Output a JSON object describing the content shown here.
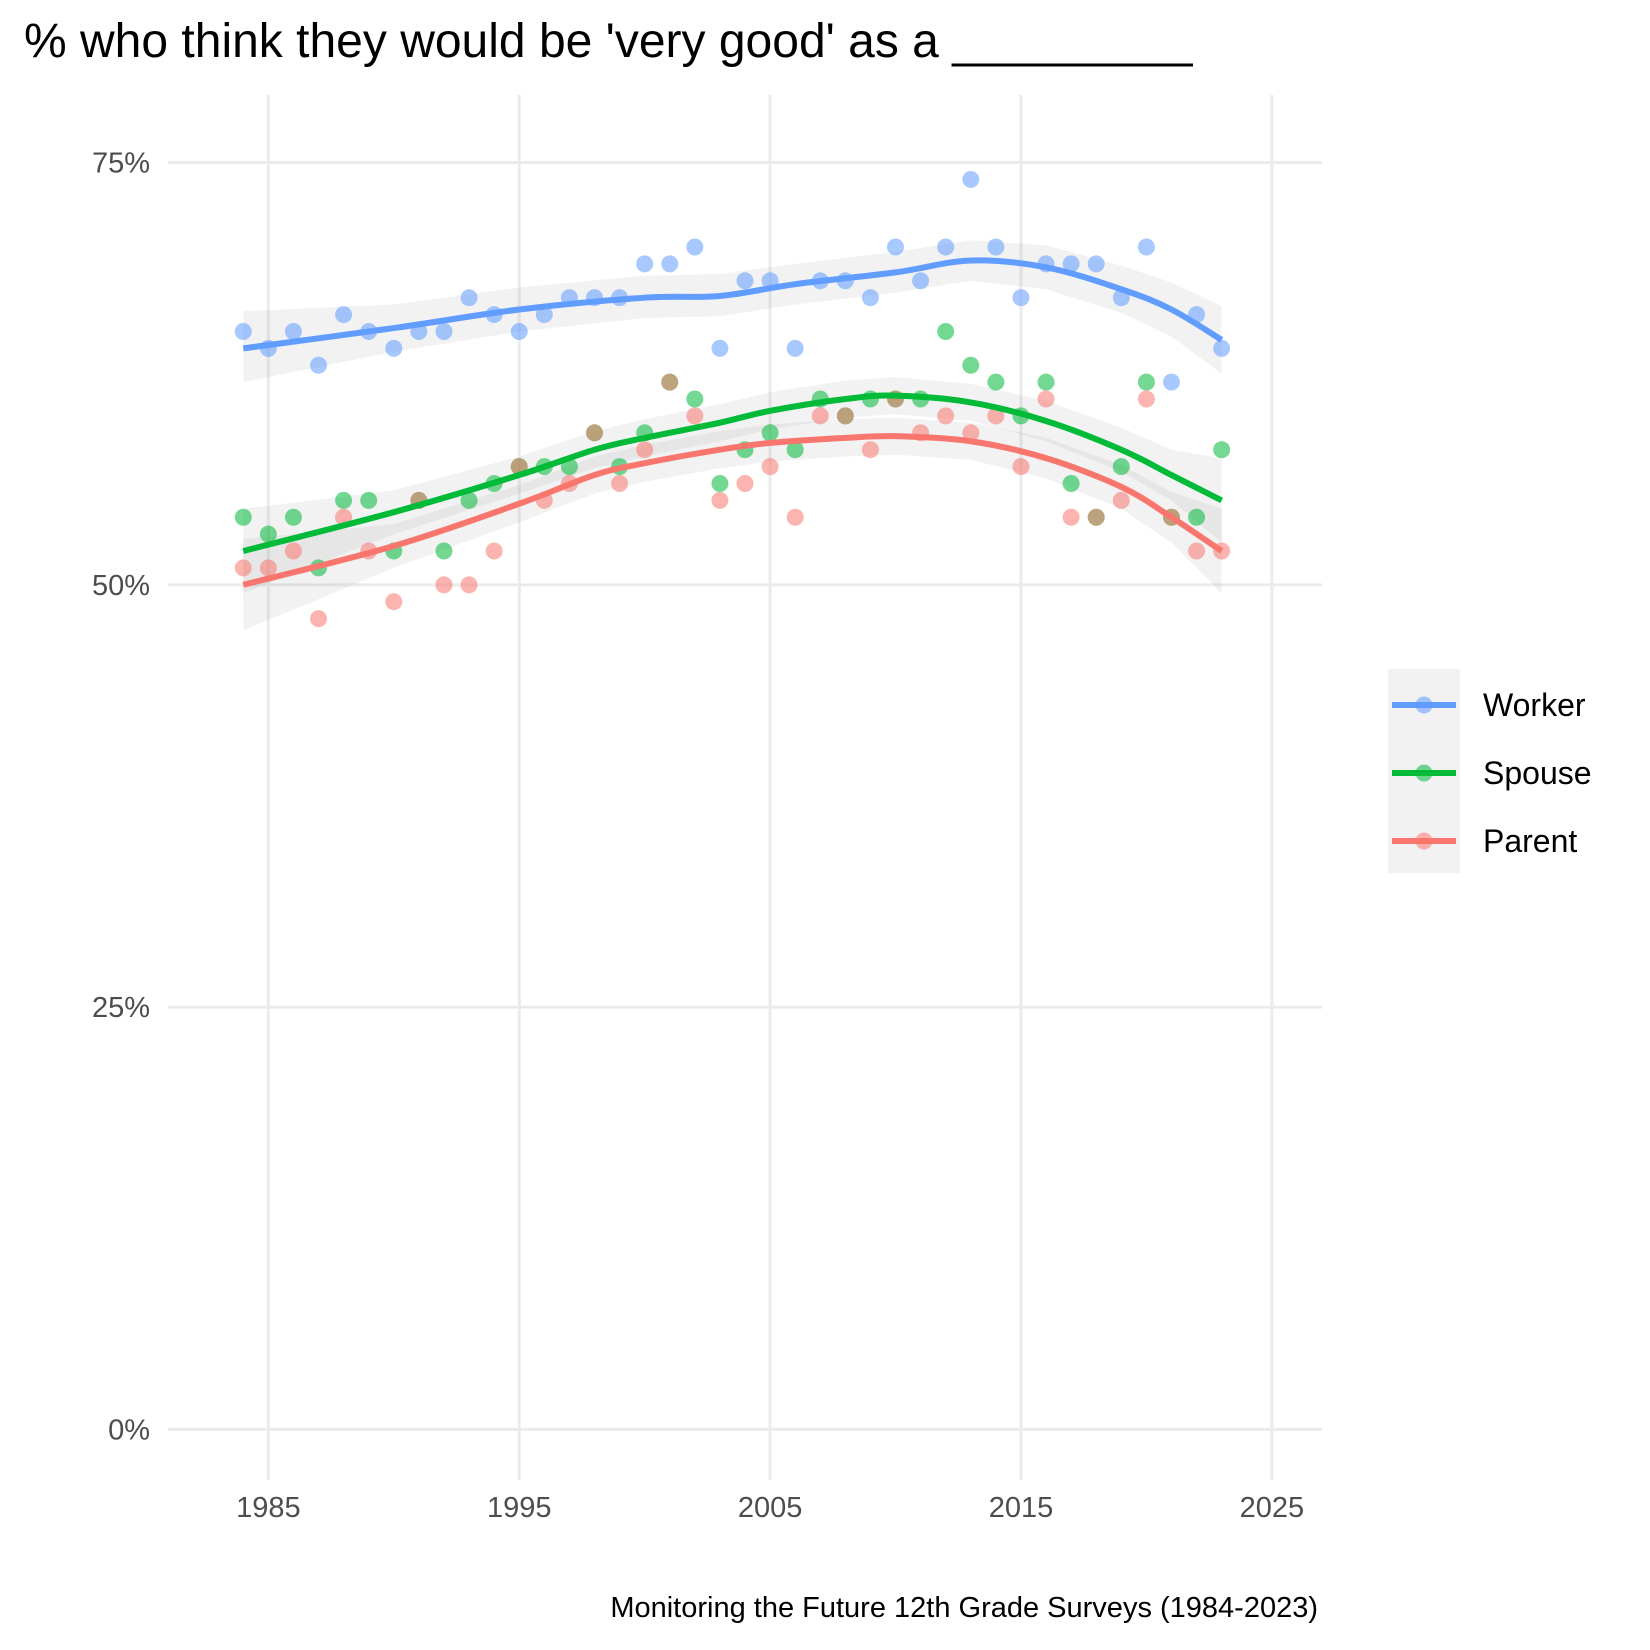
{
  "chart_data": {
    "type": "scatter",
    "title": "% who think they would be 'very good' as a _________",
    "caption": "Monitoring the Future 12th Grade Surveys (1984-2023)",
    "xlabel": "",
    "ylabel": "",
    "xlim": [
      1981,
      2027
    ],
    "ylim": [
      -3,
      79
    ],
    "x_ticks": [
      1985,
      1995,
      2005,
      2015,
      2025
    ],
    "x_tick_labels": [
      "1985",
      "1995",
      "2005",
      "2015",
      "2025"
    ],
    "y_ticks": [
      0,
      25,
      50,
      75
    ],
    "y_tick_labels": [
      "0%",
      "25%",
      "50%",
      "75%"
    ],
    "grid": true,
    "legend_position": "right",
    "series": [
      {
        "name": "Worker",
        "color": "#619CFF",
        "points": [
          [
            1984,
            65
          ],
          [
            1985,
            64
          ],
          [
            1986,
            65
          ],
          [
            1987,
            63
          ],
          [
            1988,
            66
          ],
          [
            1989,
            65
          ],
          [
            1990,
            64
          ],
          [
            1991,
            65
          ],
          [
            1992,
            65
          ],
          [
            1993,
            67
          ],
          [
            1994,
            66
          ],
          [
            1995,
            65
          ],
          [
            1996,
            66
          ],
          [
            1997,
            67
          ],
          [
            1998,
            67
          ],
          [
            1999,
            67
          ],
          [
            2000,
            69
          ],
          [
            2001,
            69
          ],
          [
            2002,
            70
          ],
          [
            2003,
            64
          ],
          [
            2004,
            68
          ],
          [
            2005,
            68
          ],
          [
            2006,
            64
          ],
          [
            2007,
            68
          ],
          [
            2008,
            68
          ],
          [
            2009,
            67
          ],
          [
            2010,
            70
          ],
          [
            2011,
            68
          ],
          [
            2012,
            70
          ],
          [
            2013,
            74
          ],
          [
            2014,
            70
          ],
          [
            2015,
            67
          ],
          [
            2016,
            69
          ],
          [
            2017,
            69
          ],
          [
            2018,
            69
          ],
          [
            2019,
            67
          ],
          [
            2020,
            70
          ],
          [
            2021,
            62
          ],
          [
            2022,
            66
          ],
          [
            2023,
            64
          ]
        ],
        "smooth": [
          [
            1984,
            64
          ],
          [
            1990,
            65.2
          ],
          [
            1995,
            66.3
          ],
          [
            2000,
            67
          ],
          [
            2003,
            67.1
          ],
          [
            2006,
            67.8
          ],
          [
            2010,
            68.5
          ],
          [
            2013,
            69.2
          ],
          [
            2016,
            68.8
          ],
          [
            2019,
            67.5
          ],
          [
            2021,
            66.3
          ],
          [
            2023,
            64.5
          ]
        ],
        "band": [
          [
            1984,
            62,
            66.2
          ],
          [
            1990,
            63.8,
            66.6
          ],
          [
            1995,
            65,
            67.6
          ],
          [
            2000,
            65.8,
            68.3
          ],
          [
            2003,
            65.9,
            68.4
          ],
          [
            2006,
            66.6,
            69
          ],
          [
            2010,
            67.3,
            69.7
          ],
          [
            2013,
            68,
            70.4
          ],
          [
            2016,
            67.5,
            70.1
          ],
          [
            2019,
            66.1,
            68.9
          ],
          [
            2021,
            64.7,
            67.9
          ],
          [
            2023,
            62.5,
            66.5
          ]
        ]
      },
      {
        "name": "Spouse",
        "color": "#00BA38",
        "points": [
          [
            1984,
            54
          ],
          [
            1985,
            53
          ],
          [
            1986,
            54
          ],
          [
            1987,
            51
          ],
          [
            1988,
            55
          ],
          [
            1989,
            55
          ],
          [
            1990,
            52
          ],
          [
            1991,
            55
          ],
          [
            1992,
            52
          ],
          [
            1993,
            55
          ],
          [
            1994,
            56
          ],
          [
            1995,
            57
          ],
          [
            1996,
            57
          ],
          [
            1997,
            57
          ],
          [
            1998,
            59
          ],
          [
            1999,
            57
          ],
          [
            2000,
            59
          ],
          [
            2001,
            62
          ],
          [
            2002,
            61
          ],
          [
            2003,
            56
          ],
          [
            2004,
            58
          ],
          [
            2005,
            59
          ],
          [
            2006,
            58
          ],
          [
            2007,
            61
          ],
          [
            2008,
            60
          ],
          [
            2009,
            61
          ],
          [
            2010,
            61
          ],
          [
            2011,
            61
          ],
          [
            2012,
            65
          ],
          [
            2013,
            63
          ],
          [
            2014,
            62
          ],
          [
            2015,
            60
          ],
          [
            2016,
            62
          ],
          [
            2017,
            56
          ],
          [
            2018,
            54
          ],
          [
            2019,
            57
          ],
          [
            2020,
            62
          ],
          [
            2021,
            54
          ],
          [
            2022,
            54
          ],
          [
            2023,
            58
          ]
        ],
        "smooth": [
          [
            1984,
            52
          ],
          [
            1990,
            54.3
          ],
          [
            1995,
            56.5
          ],
          [
            1998,
            58
          ],
          [
            2000,
            58.7
          ],
          [
            2003,
            59.6
          ],
          [
            2005,
            60.3
          ],
          [
            2008,
            61
          ],
          [
            2010,
            61.2
          ],
          [
            2013,
            60.8
          ],
          [
            2016,
            59.7
          ],
          [
            2019,
            58
          ],
          [
            2021,
            56.5
          ],
          [
            2023,
            55
          ]
        ],
        "band": [
          [
            1984,
            49.5,
            54.5
          ],
          [
            1990,
            53,
            55.6
          ],
          [
            1995,
            55.4,
            57.6
          ],
          [
            1998,
            56.9,
            59.1
          ],
          [
            2000,
            57.6,
            59.8
          ],
          [
            2003,
            58.5,
            60.7
          ],
          [
            2005,
            59.2,
            61.4
          ],
          [
            2008,
            59.9,
            62.1
          ],
          [
            2010,
            60.1,
            62.3
          ],
          [
            2013,
            59.7,
            61.9
          ],
          [
            2016,
            58.5,
            60.9
          ],
          [
            2019,
            56.7,
            59.3
          ],
          [
            2021,
            55,
            58
          ],
          [
            2023,
            52.5,
            57.5
          ]
        ]
      },
      {
        "name": "Parent",
        "color": "#F8766D",
        "points": [
          [
            1984,
            51
          ],
          [
            1985,
            51
          ],
          [
            1986,
            52
          ],
          [
            1987,
            48
          ],
          [
            1988,
            54
          ],
          [
            1989,
            52
          ],
          [
            1990,
            49
          ],
          [
            1991,
            55
          ],
          [
            1992,
            50
          ],
          [
            1993,
            50
          ],
          [
            1994,
            52
          ],
          [
            1995,
            57
          ],
          [
            1996,
            55
          ],
          [
            1997,
            56
          ],
          [
            1998,
            59
          ],
          [
            1999,
            56
          ],
          [
            2000,
            58
          ],
          [
            2001,
            62
          ],
          [
            2002,
            60
          ],
          [
            2003,
            55
          ],
          [
            2004,
            56
          ],
          [
            2005,
            57
          ],
          [
            2006,
            54
          ],
          [
            2007,
            60
          ],
          [
            2008,
            60
          ],
          [
            2009,
            58
          ],
          [
            2010,
            61
          ],
          [
            2011,
            59
          ],
          [
            2012,
            60
          ],
          [
            2013,
            59
          ],
          [
            2014,
            60
          ],
          [
            2015,
            57
          ],
          [
            2016,
            61
          ],
          [
            2017,
            54
          ],
          [
            2018,
            54
          ],
          [
            2019,
            55
          ],
          [
            2020,
            61
          ],
          [
            2021,
            54
          ],
          [
            2022,
            52
          ],
          [
            2023,
            52
          ]
        ],
        "smooth": [
          [
            1984,
            50
          ],
          [
            1990,
            52.3
          ],
          [
            1995,
            54.8
          ],
          [
            1998,
            56.5
          ],
          [
            2000,
            57.2
          ],
          [
            2003,
            58
          ],
          [
            2005,
            58.4
          ],
          [
            2008,
            58.7
          ],
          [
            2010,
            58.8
          ],
          [
            2013,
            58.5
          ],
          [
            2016,
            57.5
          ],
          [
            2019,
            55.8
          ],
          [
            2021,
            54
          ],
          [
            2023,
            52
          ]
        ],
        "band": [
          [
            1984,
            47.3,
            52.7
          ],
          [
            1990,
            51,
            53.6
          ],
          [
            1995,
            53.7,
            55.9
          ],
          [
            1998,
            55.4,
            57.6
          ],
          [
            2000,
            56.1,
            58.3
          ],
          [
            2003,
            56.9,
            59.1
          ],
          [
            2005,
            57.3,
            59.5
          ],
          [
            2008,
            57.6,
            59.8
          ],
          [
            2010,
            57.7,
            59.9
          ],
          [
            2013,
            57.4,
            59.6
          ],
          [
            2016,
            56.3,
            58.7
          ],
          [
            2019,
            54.5,
            57.1
          ],
          [
            2021,
            52.5,
            55.5
          ],
          [
            2023,
            49.5,
            54.5
          ]
        ]
      }
    ]
  }
}
